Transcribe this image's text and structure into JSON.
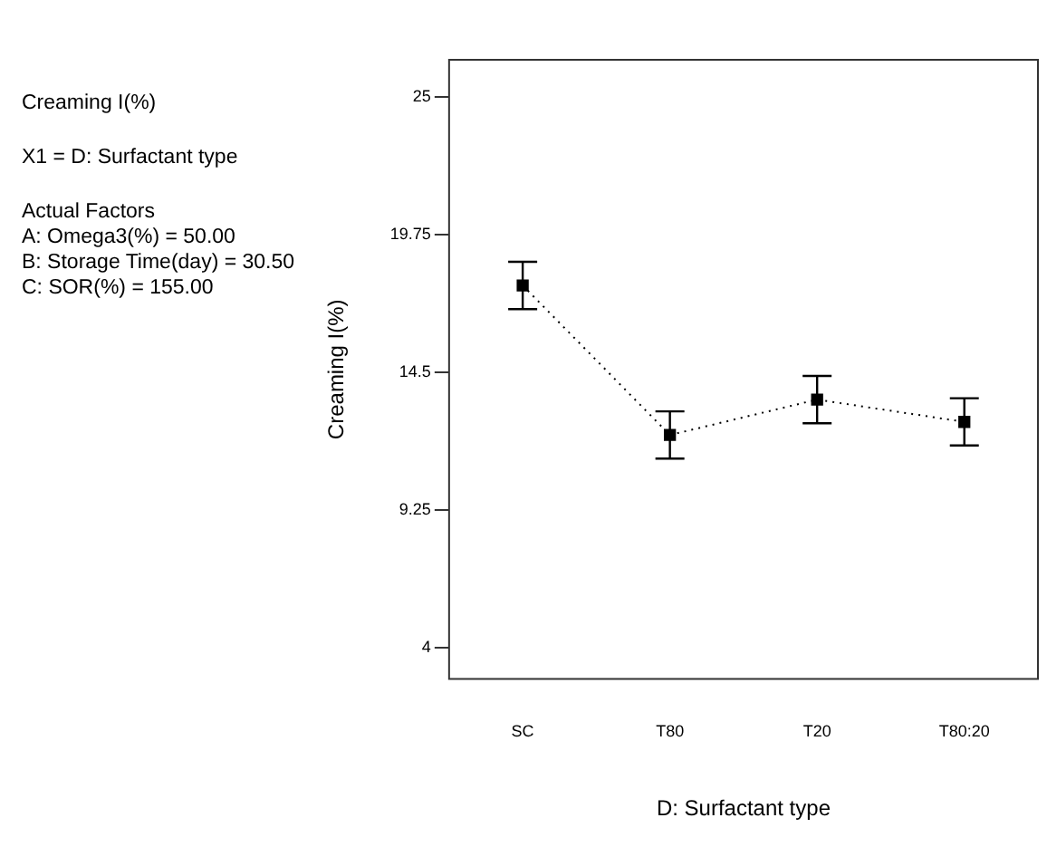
{
  "chart_data": {
    "type": "line",
    "xlabel": "D: Surfactant type",
    "ylabel": "Creaming I(%)",
    "annotations": [
      "Creaming I(%)",
      "X1 = D: Surfactant type",
      "Actual Factors",
      "A: Omega3(%) = 50.00",
      "B: Storage Time(day) = 30.50",
      "C: SOR(%) = 155.00"
    ],
    "categories": [
      "SC",
      "T80",
      "T20",
      "T80:20"
    ],
    "series": [
      {
        "color": "#000000",
        "values": [
          17.8,
          12.1,
          13.45,
          12.6
        ],
        "errors": [
          0.9,
          0.9,
          0.9,
          0.9
        ]
      }
    ],
    "ylim": [
      2.8,
      26.4
    ],
    "yticks": [
      25,
      19.75,
      14.5,
      9.25,
      4
    ],
    "grid": false,
    "legend": false,
    "marker": "square",
    "line_style": "dotted"
  }
}
